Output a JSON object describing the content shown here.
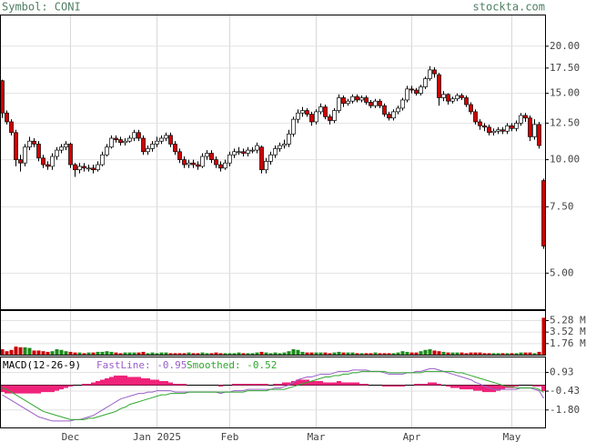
{
  "header": {
    "symbol": "Symbol: CONI",
    "source": "stockta.com"
  },
  "chart_data": [
    {
      "type": "candlestick",
      "categories": [
        null,
        null,
        null,
        null,
        null,
        null,
        null,
        null,
        null,
        null,
        null,
        null,
        null,
        null,
        null,
        "Dec",
        null,
        null,
        null,
        null,
        null,
        null,
        null,
        null,
        null,
        null,
        null,
        null,
        null,
        null,
        null,
        null,
        null,
        null,
        "Jan 2025",
        null,
        null,
        null,
        null,
        null,
        null,
        null,
        null,
        null,
        null,
        null,
        null,
        null,
        null,
        null,
        "Feb",
        null,
        null,
        null,
        null,
        null,
        null,
        null,
        null,
        null,
        null,
        null,
        null,
        null,
        null,
        null,
        null,
        null,
        null,
        "Mar",
        null,
        null,
        null,
        null,
        null,
        null,
        null,
        null,
        null,
        null,
        null,
        null,
        null,
        null,
        null,
        null,
        null,
        null,
        null,
        null,
        "Apr",
        null,
        null,
        null,
        null,
        null,
        null,
        null,
        null,
        null,
        null,
        null,
        null,
        null,
        null,
        null,
        null,
        null,
        null,
        null,
        null,
        null,
        "May",
        null,
        null,
        null,
        null,
        null,
        null,
        null
      ],
      "open": [
        16.2,
        13.3,
        12.6,
        11.8,
        10.0,
        9.8,
        10.8,
        11.2,
        11.0,
        10.1,
        9.7,
        9.6,
        10.2,
        10.6,
        10.8,
        11.0,
        9.7,
        9.4,
        9.6,
        9.5,
        9.5,
        9.4,
        9.7,
        10.3,
        10.8,
        11.4,
        11.3,
        11.1,
        11.2,
        11.4,
        11.8,
        11.4,
        10.5,
        10.7,
        11.0,
        11.2,
        11.4,
        11.6,
        11.0,
        10.5,
        10.0,
        9.7,
        9.8,
        9.7,
        9.6,
        10.2,
        10.4,
        10.0,
        9.7,
        9.5,
        9.8,
        10.3,
        10.5,
        10.5,
        10.4,
        10.6,
        10.6,
        10.8,
        9.4,
        9.9,
        10.3,
        10.7,
        10.9,
        11.0,
        11.7,
        12.8,
        13.3,
        13.5,
        13.2,
        12.6,
        13.4,
        13.8,
        13.0,
        12.7,
        13.5,
        14.6,
        14.1,
        14.3,
        14.7,
        14.4,
        14.6,
        14.2,
        13.9,
        14.3,
        13.9,
        13.2,
        12.9,
        13.4,
        13.7,
        14.4,
        15.4,
        15.3,
        15.0,
        15.6,
        16.4,
        17.3,
        16.8,
        14.6,
        14.9,
        14.3,
        14.5,
        14.8,
        14.6,
        14.0,
        13.4,
        12.6,
        12.3,
        12.2,
        11.8,
        11.9,
        12.0,
        11.9,
        12.3,
        12.1,
        12.5,
        13.1,
        12.9,
        11.5,
        12.4,
        8.8
      ],
      "high": [
        16.3,
        13.5,
        12.8,
        12.0,
        10.3,
        11.0,
        11.5,
        11.4,
        11.2,
        10.3,
        9.9,
        10.4,
        10.8,
        11.0,
        11.2,
        11.1,
        9.8,
        9.8,
        9.8,
        9.7,
        9.7,
        9.9,
        10.5,
        11.0,
        11.6,
        11.6,
        11.5,
        11.4,
        11.6,
        12.0,
        12.0,
        11.6,
        10.9,
        11.2,
        11.5,
        11.6,
        11.8,
        11.8,
        11.2,
        10.7,
        10.2,
        10.0,
        10.0,
        9.9,
        10.4,
        10.6,
        10.6,
        10.2,
        9.9,
        10.0,
        10.5,
        10.7,
        10.8,
        10.7,
        10.8,
        10.8,
        11.1,
        10.9,
        10.1,
        10.5,
        10.9,
        11.1,
        11.3,
        12.0,
        13.0,
        13.6,
        13.8,
        13.7,
        13.4,
        13.6,
        14.1,
        14.0,
        13.2,
        13.7,
        14.9,
        14.8,
        14.5,
        14.9,
        14.9,
        14.8,
        14.8,
        14.4,
        14.5,
        14.5,
        14.1,
        13.4,
        13.6,
        13.9,
        14.6,
        15.7,
        15.7,
        15.5,
        15.8,
        16.6,
        17.7,
        17.6,
        17.0,
        15.2,
        15.0,
        14.7,
        15.0,
        15.0,
        14.8,
        14.2,
        13.6,
        12.8,
        12.5,
        12.4,
        12.1,
        12.2,
        12.2,
        12.5,
        12.5,
        12.7,
        13.3,
        13.3,
        13.1,
        12.8,
        12.6,
        8.9
      ],
      "low": [
        12.9,
        12.4,
        11.6,
        9.6,
        9.3,
        9.6,
        10.6,
        10.8,
        9.9,
        9.5,
        9.4,
        9.4,
        10.0,
        10.4,
        10.6,
        9.5,
        9.0,
        9.2,
        9.3,
        9.3,
        9.2,
        9.3,
        9.6,
        10.2,
        10.7,
        11.1,
        10.9,
        10.9,
        11.1,
        11.2,
        11.2,
        10.3,
        10.3,
        10.5,
        10.8,
        11.0,
        11.2,
        10.8,
        10.3,
        9.8,
        9.5,
        9.5,
        9.5,
        9.4,
        9.5,
        10.0,
        9.8,
        9.5,
        9.3,
        9.4,
        9.6,
        10.1,
        10.3,
        10.2,
        10.2,
        10.4,
        10.4,
        9.2,
        9.2,
        9.7,
        10.1,
        10.5,
        10.7,
        10.8,
        11.5,
        12.5,
        13.0,
        13.0,
        12.3,
        12.4,
        13.2,
        12.8,
        12.4,
        12.5,
        13.3,
        13.8,
        13.9,
        14.1,
        14.2,
        14.2,
        14.0,
        13.7,
        13.7,
        13.7,
        13.0,
        12.7,
        12.7,
        13.2,
        13.5,
        14.2,
        15.0,
        14.8,
        14.8,
        15.4,
        16.2,
        16.5,
        13.9,
        14.3,
        14.0,
        14.1,
        14.3,
        14.4,
        13.8,
        13.2,
        12.4,
        12.0,
        11.9,
        11.6,
        11.6,
        11.7,
        11.7,
        11.7,
        11.9,
        11.9,
        12.3,
        12.6,
        11.2,
        11.3,
        10.7,
        5.8
      ],
      "close": [
        13.3,
        12.6,
        11.8,
        10.0,
        9.8,
        10.8,
        11.2,
        11.0,
        10.1,
        9.7,
        9.6,
        10.2,
        10.6,
        10.8,
        11.0,
        9.7,
        9.4,
        9.6,
        9.5,
        9.5,
        9.4,
        9.7,
        10.3,
        10.8,
        11.4,
        11.3,
        11.1,
        11.2,
        11.4,
        11.8,
        11.4,
        10.5,
        10.7,
        11.0,
        11.2,
        11.4,
        11.6,
        11.0,
        10.5,
        10.0,
        9.7,
        9.8,
        9.7,
        9.6,
        10.2,
        10.4,
        10.0,
        9.7,
        9.5,
        9.8,
        10.3,
        10.5,
        10.5,
        10.4,
        10.6,
        10.6,
        10.9,
        9.4,
        9.9,
        10.3,
        10.7,
        10.9,
        11.0,
        11.7,
        12.8,
        13.3,
        13.5,
        13.2,
        12.6,
        13.4,
        13.8,
        13.0,
        12.7,
        13.5,
        14.6,
        14.1,
        14.3,
        14.7,
        14.4,
        14.6,
        14.2,
        13.9,
        14.3,
        13.9,
        13.2,
        12.9,
        13.4,
        13.7,
        14.4,
        15.4,
        15.3,
        15.0,
        15.6,
        16.4,
        17.3,
        16.9,
        14.6,
        14.9,
        14.3,
        14.5,
        14.8,
        14.6,
        14.0,
        13.4,
        12.6,
        12.3,
        12.2,
        11.8,
        11.9,
        12.0,
        11.9,
        12.3,
        12.1,
        12.5,
        13.1,
        12.9,
        11.5,
        12.4,
        10.9,
        5.9
      ],
      "up_color": "#ffffff",
      "down_color": "#d40000",
      "log_scale": true,
      "grid": true,
      "ylim": [
        4.0,
        24.2
      ],
      "yticks": [
        {
          "value": 5,
          "label": "5.00"
        },
        {
          "value": 7.5,
          "label": "7.50"
        },
        {
          "value": 10,
          "label": "10.00"
        },
        {
          "value": 12.5,
          "label": "12.50"
        },
        {
          "value": 15,
          "label": "15.00"
        },
        {
          "value": 17.5,
          "label": "17.50"
        },
        {
          "value": 20,
          "label": "20.00"
        }
      ]
    },
    {
      "type": "volume",
      "values": [
        0.9,
        0.6,
        0.8,
        1.3,
        1.2,
        1.2,
        1.1,
        0.7,
        0.7,
        0.6,
        0.5,
        0.6,
        0.9,
        0.8,
        0.6,
        0.5,
        0.4,
        0.4,
        0.3,
        0.4,
        0.4,
        0.5,
        0.5,
        0.6,
        0.5,
        0.4,
        0.3,
        0.4,
        0.4,
        0.4,
        0.4,
        0.5,
        0.3,
        0.4,
        0.3,
        0.4,
        0.4,
        0.3,
        0.3,
        0.3,
        0.3,
        0.4,
        0.3,
        0.3,
        0.4,
        0.3,
        0.3,
        0.4,
        0.3,
        0.3,
        0.3,
        0.3,
        0.4,
        0.3,
        0.3,
        0.3,
        0.4,
        0.5,
        0.4,
        0.3,
        0.4,
        0.3,
        0.4,
        0.6,
        0.9,
        0.8,
        0.5,
        0.4,
        0.4,
        0.4,
        0.4,
        0.4,
        0.3,
        0.4,
        0.5,
        0.4,
        0.4,
        0.4,
        0.3,
        0.3,
        0.3,
        0.3,
        0.4,
        0.3,
        0.3,
        0.3,
        0.3,
        0.4,
        0.6,
        0.5,
        0.4,
        0.4,
        0.6,
        0.8,
        0.9,
        0.7,
        0.6,
        0.5,
        0.4,
        0.4,
        0.4,
        0.4,
        0.3,
        0.4,
        0.4,
        0.4,
        0.3,
        0.3,
        0.3,
        0.3,
        0.3,
        0.3,
        0.3,
        0.3,
        0.4,
        0.4,
        0.4,
        0.3,
        0.5,
        5.7
      ],
      "up_color": "#1a8a1a",
      "down_color": "#c80000",
      "ylim": [
        0,
        6.8
      ],
      "yticks": [
        {
          "value": 1.76,
          "label": "1.76 M"
        },
        {
          "value": 3.52,
          "label": "3.52 M"
        },
        {
          "value": 5.28,
          "label": "5.28 M"
        }
      ]
    },
    {
      "type": "macd",
      "title": "MACD(12-26-9)",
      "series": [
        {
          "name": "FastLine: -0.95",
          "color": "#9a5fc8",
          "values": [
            -0.7,
            -0.9,
            -1.1,
            -1.3,
            -1.5,
            -1.7,
            -1.9,
            -2.1,
            -2.3,
            -2.4,
            -2.5,
            -2.6,
            -2.6,
            -2.6,
            -2.6,
            -2.6,
            -2.5,
            -2.5,
            -2.4,
            -2.3,
            -2.2,
            -2.0,
            -1.8,
            -1.6,
            -1.4,
            -1.2,
            -1.0,
            -0.9,
            -0.8,
            -0.7,
            -0.6,
            -0.6,
            -0.5,
            -0.5,
            -0.4,
            -0.4,
            -0.4,
            -0.4,
            -0.5,
            -0.5,
            -0.5,
            -0.5,
            -0.5,
            -0.5,
            -0.5,
            -0.5,
            -0.5,
            -0.5,
            -0.6,
            -0.5,
            -0.5,
            -0.4,
            -0.4,
            -0.4,
            -0.3,
            -0.3,
            -0.3,
            -0.3,
            -0.3,
            -0.3,
            -0.2,
            -0.2,
            -0.1,
            0.0,
            0.2,
            0.4,
            0.5,
            0.6,
            0.6,
            0.7,
            0.8,
            0.8,
            0.8,
            0.9,
            1.0,
            1.0,
            1.0,
            1.1,
            1.1,
            1.1,
            1.1,
            1.0,
            1.0,
            1.0,
            0.9,
            0.8,
            0.8,
            0.8,
            0.8,
            0.9,
            0.9,
            1.0,
            1.0,
            1.1,
            1.2,
            1.2,
            1.1,
            1.0,
            0.9,
            0.8,
            0.7,
            0.6,
            0.5,
            0.4,
            0.2,
            0.1,
            -0.1,
            -0.2,
            -0.3,
            -0.3,
            -0.3,
            -0.3,
            -0.3,
            -0.3,
            -0.2,
            -0.2,
            -0.2,
            -0.3,
            -0.4,
            -0.95
          ]
        },
        {
          "name": "Smoothed: -0.52",
          "color": "#2fa82f",
          "values": [
            -0.2,
            -0.3,
            -0.5,
            -0.7,
            -0.9,
            -1.1,
            -1.3,
            -1.5,
            -1.7,
            -1.9,
            -2.0,
            -2.1,
            -2.2,
            -2.3,
            -2.4,
            -2.5,
            -2.5,
            -2.5,
            -2.5,
            -2.4,
            -2.4,
            -2.3,
            -2.2,
            -2.1,
            -2.0,
            -1.9,
            -1.7,
            -1.6,
            -1.4,
            -1.3,
            -1.2,
            -1.1,
            -1.0,
            -0.9,
            -0.8,
            -0.7,
            -0.7,
            -0.6,
            -0.6,
            -0.6,
            -0.6,
            -0.5,
            -0.5,
            -0.5,
            -0.5,
            -0.5,
            -0.5,
            -0.5,
            -0.5,
            -0.5,
            -0.5,
            -0.5,
            -0.5,
            -0.5,
            -0.4,
            -0.4,
            -0.4,
            -0.4,
            -0.4,
            -0.3,
            -0.3,
            -0.3,
            -0.3,
            -0.2,
            -0.1,
            0.0,
            0.1,
            0.2,
            0.3,
            0.4,
            0.5,
            0.6,
            0.6,
            0.7,
            0.7,
            0.8,
            0.8,
            0.9,
            0.9,
            1.0,
            1.0,
            1.0,
            1.0,
            1.0,
            1.0,
            0.9,
            0.9,
            0.9,
            0.9,
            0.9,
            0.9,
            0.9,
            0.9,
            1.0,
            1.0,
            1.0,
            1.0,
            1.0,
            1.0,
            1.0,
            0.9,
            0.9,
            0.8,
            0.7,
            0.6,
            0.5,
            0.4,
            0.3,
            0.2,
            0.1,
            0.0,
            -0.1,
            -0.1,
            -0.2,
            -0.2,
            -0.2,
            -0.2,
            -0.2,
            -0.3,
            -0.52
          ]
        }
      ],
      "histogram": {
        "color": "#f0237a",
        "values": [
          -0.5,
          -0.6,
          -0.6,
          -0.6,
          -0.6,
          -0.6,
          -0.6,
          -0.6,
          -0.6,
          -0.5,
          -0.5,
          -0.5,
          -0.4,
          -0.3,
          -0.2,
          -0.1,
          0.0,
          0.0,
          0.1,
          0.1,
          0.2,
          0.3,
          0.4,
          0.5,
          0.6,
          0.7,
          0.7,
          0.7,
          0.6,
          0.6,
          0.6,
          0.5,
          0.5,
          0.4,
          0.4,
          0.3,
          0.3,
          0.2,
          0.1,
          0.1,
          0.1,
          0,
          0,
          0,
          0,
          0,
          0,
          0,
          -0.1,
          0,
          0,
          0.1,
          0.1,
          0.1,
          0.1,
          0.1,
          0.1,
          0.1,
          0.1,
          0,
          0.1,
          0.1,
          0.2,
          0.2,
          0.3,
          0.4,
          0.4,
          0.4,
          0.3,
          0.3,
          0.3,
          0.2,
          0.2,
          0.2,
          0.3,
          0.2,
          0.2,
          0.2,
          0.2,
          0.1,
          0.1,
          0,
          0,
          0,
          -0.1,
          -0.1,
          -0.1,
          -0.1,
          -0.1,
          0,
          0,
          0.1,
          0.1,
          0.1,
          0.2,
          0.2,
          0.1,
          0,
          -0.1,
          -0.2,
          -0.2,
          -0.3,
          -0.3,
          -0.3,
          -0.4,
          -0.4,
          -0.5,
          -0.5,
          -0.5,
          -0.4,
          -0.3,
          -0.2,
          -0.2,
          -0.1,
          0,
          0,
          0,
          -0.1,
          -0.1,
          -0.43
        ]
      },
      "ylim": [
        -3.1,
        2.05
      ],
      "yticks": [
        0.93,
        -0.43,
        {
          "value": -1.8,
          "label": "-1.80"
        }
      ]
    }
  ]
}
